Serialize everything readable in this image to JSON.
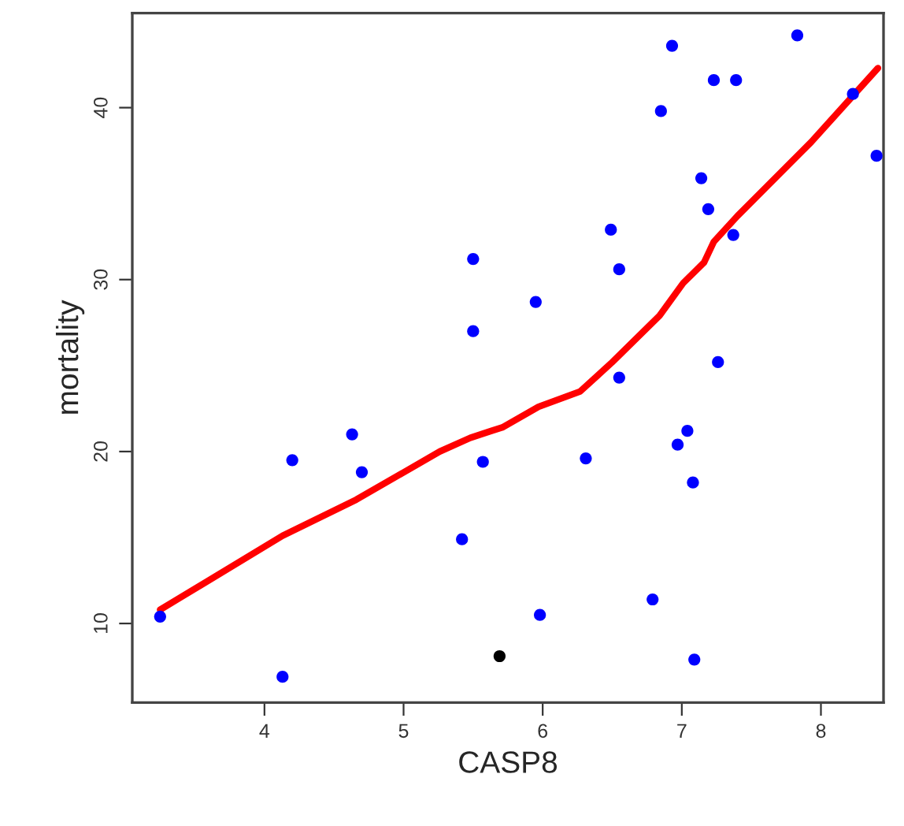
{
  "chart_data": {
    "type": "scatter",
    "xlabel": "CASP8",
    "ylabel": "mortality",
    "xlim": [
      3.05,
      8.45
    ],
    "ylim": [
      5.4,
      45.5
    ],
    "xticks": [
      4,
      5,
      6,
      7,
      8
    ],
    "yticks": [
      10,
      20,
      30,
      40
    ],
    "grid": false,
    "marker": "circle",
    "series": [
      {
        "color": "#0000ff",
        "x": [
          3.25,
          4.13,
          4.2,
          4.63,
          4.7,
          5.5,
          5.5,
          5.57,
          5.42,
          5.95,
          5.98,
          6.31,
          6.49,
          6.55,
          6.55,
          6.79,
          6.85,
          6.93,
          6.97,
          7.04,
          7.08,
          7.09,
          7.14,
          7.19,
          7.23,
          7.26,
          7.37,
          7.39,
          7.83,
          8.23,
          8.4
        ],
        "values": [
          10.4,
          6.9,
          19.5,
          21.0,
          18.8,
          31.2,
          27.0,
          19.4,
          14.9,
          28.7,
          10.5,
          19.6,
          32.9,
          30.6,
          24.3,
          11.4,
          39.8,
          43.6,
          20.4,
          21.2,
          18.2,
          7.9,
          35.9,
          34.1,
          41.6,
          25.2,
          32.6,
          41.6,
          44.2,
          40.8,
          37.2
        ]
      },
      {
        "color": "#000000",
        "x": [
          5.69
        ],
        "values": [
          8.1
        ]
      },
      {
        "type": "line",
        "color": "#ff0000",
        "line_style": "solid",
        "marker": "none",
        "x": [
          3.25,
          4.13,
          4.66,
          5.26,
          5.48,
          5.63,
          5.71,
          5.97,
          6.27,
          6.5,
          6.84,
          7.01,
          7.16,
          7.23,
          7.4,
          7.93,
          8.41
        ],
        "values": [
          10.8,
          15.1,
          17.2,
          20.0,
          20.8,
          21.2,
          21.4,
          22.6,
          23.5,
          25.2,
          27.9,
          29.8,
          31.0,
          32.2,
          33.7,
          38.0,
          42.3
        ]
      }
    ]
  }
}
